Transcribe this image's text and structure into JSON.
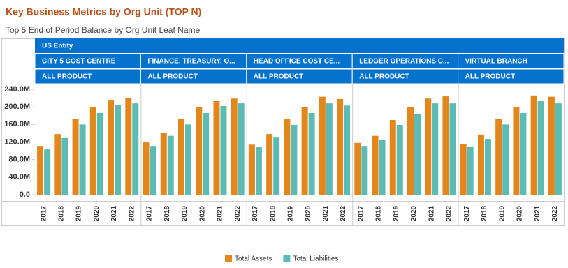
{
  "chart_data": {
    "type": "bar",
    "title": "Key Business Metrics by Org Unit (TOP N)",
    "subtitle": "Top 5 End of Period Balance by Org Unit Leaf Name",
    "entity": "US Entity",
    "categories": [
      "2017",
      "2018",
      "2019",
      "2020",
      "2021",
      "2022"
    ],
    "series": [
      {
        "name": "Total Assets",
        "color": "#e3861b"
      },
      {
        "name": "Total Liabilities",
        "color": "#5cbcb5"
      }
    ],
    "panels": [
      {
        "label": "CITY 5 COST CENTRE",
        "product": "ALL PRODUCT",
        "values": [
          [
            111,
            138,
            172,
            199,
            216,
            221
          ],
          [
            103,
            129,
            160,
            186,
            205,
            208
          ]
        ]
      },
      {
        "label": "FINANCE, TREASURY, O...",
        "product": "ALL PRODUCT",
        "values": [
          [
            119,
            140,
            172,
            199,
            213,
            219
          ],
          [
            111,
            134,
            160,
            186,
            202,
            208
          ]
        ]
      },
      {
        "label": "HEAD OFFICE COST CE...",
        "product": "ALL PRODUCT",
        "values": [
          [
            114,
            138,
            172,
            199,
            223,
            218
          ],
          [
            108,
            130,
            159,
            186,
            208,
            203
          ]
        ]
      },
      {
        "label": "LEDGER OPERATIONS C...",
        "product": "ALL PRODUCT",
        "values": [
          [
            118,
            134,
            170,
            200,
            219,
            224
          ],
          [
            111,
            124,
            159,
            184,
            208,
            208
          ]
        ]
      },
      {
        "label": "VIRTUAL BRANCH",
        "product": "ALL PRODUCT",
        "values": [
          [
            116,
            137,
            172,
            199,
            226,
            223
          ],
          [
            110,
            127,
            160,
            186,
            213,
            208
          ]
        ]
      }
    ],
    "ylim": [
      0,
      240
    ],
    "yticks": [
      {
        "value": 0,
        "label": "0.0"
      },
      {
        "value": 40,
        "label": "40.0M"
      },
      {
        "value": 80,
        "label": "80.0M"
      },
      {
        "value": 120,
        "label": "120.0M"
      },
      {
        "value": 160,
        "label": "160.0M"
      },
      {
        "value": 200,
        "label": "200.0M"
      },
      {
        "value": 240,
        "label": "240.0M"
      }
    ]
  }
}
